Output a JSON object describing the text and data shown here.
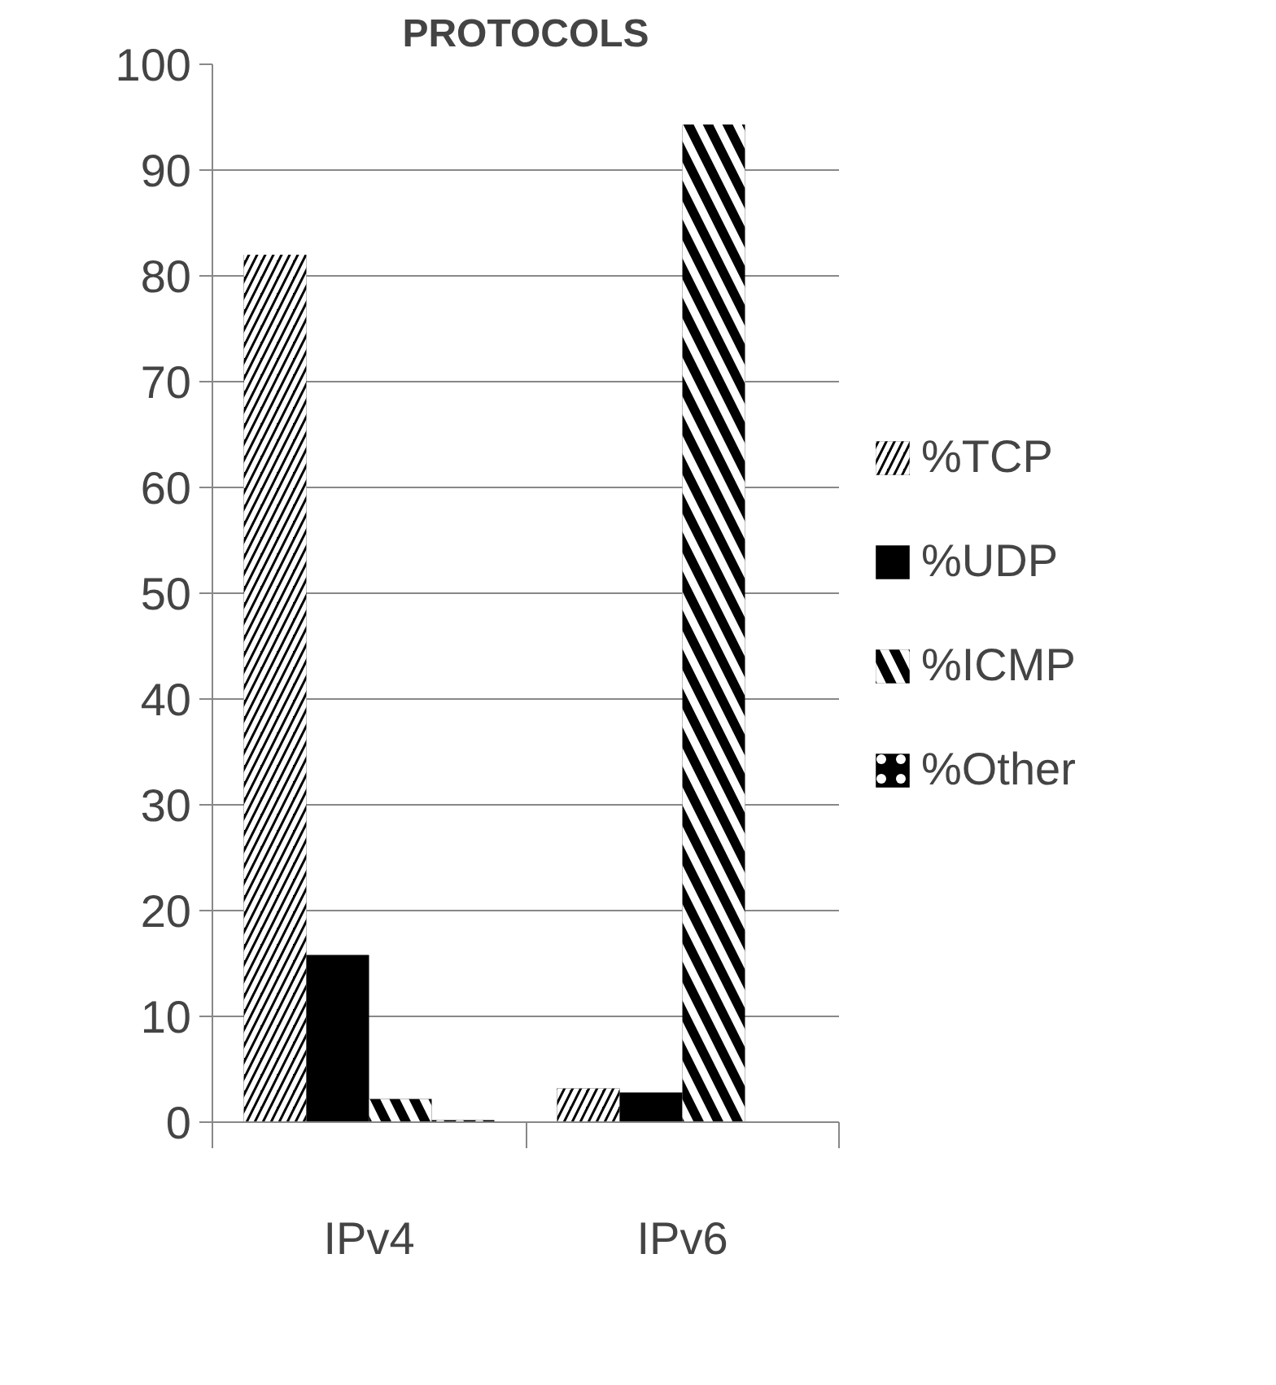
{
  "chart_data": {
    "type": "bar",
    "title": "PROTOCOLS",
    "categories": [
      "IPv4",
      "IPv6"
    ],
    "series": [
      {
        "name": "%TCP",
        "color": "#000000",
        "values": [
          82,
          3.2
        ]
      },
      {
        "name": "%UDP",
        "color": "#000000",
        "values": [
          15.8,
          2.8
        ]
      },
      {
        "name": "%ICMP",
        "color": "#000000",
        "values": [
          2.2,
          94.3
        ]
      },
      {
        "name": "%Other",
        "color": "#000000",
        "values": [
          0.2,
          0
        ]
      }
    ],
    "ylim": [
      0,
      100
    ],
    "yticks": [
      0,
      10,
      20,
      30,
      40,
      50,
      60,
      70,
      80,
      90,
      100
    ],
    "grid": "y",
    "legend": "right"
  }
}
